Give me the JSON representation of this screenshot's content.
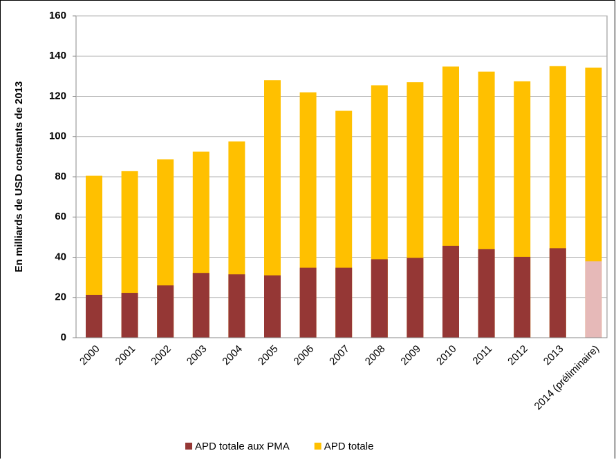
{
  "chart_data": {
    "type": "bar",
    "y_label": "En milliards de USD constants de 2013",
    "categories": [
      "2000",
      "2001",
      "2002",
      "2003",
      "2004",
      "2005",
      "2006",
      "2007",
      "2008",
      "2009",
      "2010",
      "2011",
      "2012",
      "2013",
      "2014 (préliminaire)"
    ],
    "series": [
      {
        "name": "APD totale",
        "color": "#ffc000",
        "values": [
          80.5,
          82.8,
          88.7,
          92.5,
          97.6,
          128,
          122,
          112.8,
          125.5,
          127,
          134.8,
          132.3,
          127.5,
          135,
          134.3
        ]
      },
      {
        "name": "APD totale aux PMA",
        "color": "#953735",
        "colors": [
          "#953735",
          "#953735",
          "#953735",
          "#953735",
          "#953735",
          "#953735",
          "#953735",
          "#953735",
          "#953735",
          "#953735",
          "#953735",
          "#953735",
          "#953735",
          "#953735",
          "#e6b9b8"
        ],
        "values": [
          21.3,
          22.3,
          26,
          32.2,
          31.5,
          31,
          34.8,
          34.8,
          39,
          39.7,
          45.7,
          44,
          40.2,
          44.5,
          38
        ]
      }
    ],
    "legend_order": [
      1,
      0
    ],
    "ylim": [
      0,
      160
    ],
    "yticks": [
      0,
      20,
      40,
      60,
      80,
      100,
      120,
      140,
      160
    ],
    "grid": true
  }
}
